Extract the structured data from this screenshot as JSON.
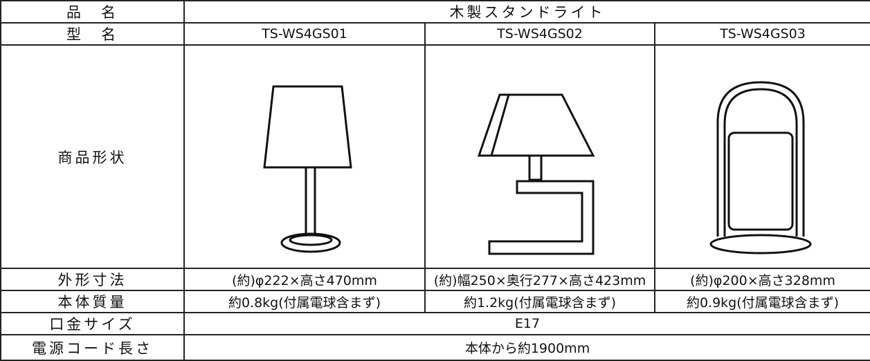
{
  "table": {
    "rows": [
      [
        "品　名",
        "木製スタンドライト"
      ],
      [
        "型　名",
        "TS-WS4GS01",
        "TS-WS4GS02",
        "TS-WS4GS03"
      ],
      [
        "商品形状"
      ],
      [
        "外形寸法",
        "(約)φ222×高さ470mm",
        "(約)幅250×奥行277×高さ423mm",
        "(約)φ200×高さ328mm"
      ],
      [
        "本体質量",
        "約0.8kg(付属電球含まず)",
        "約1.2kg(付属電球含まず)",
        "約0.9kg(付属電球含まず)"
      ],
      [
        "口金サイズ",
        "E17"
      ],
      [
        "電源コード長さ",
        "本体から約1900mm"
      ]
    ]
  }
}
